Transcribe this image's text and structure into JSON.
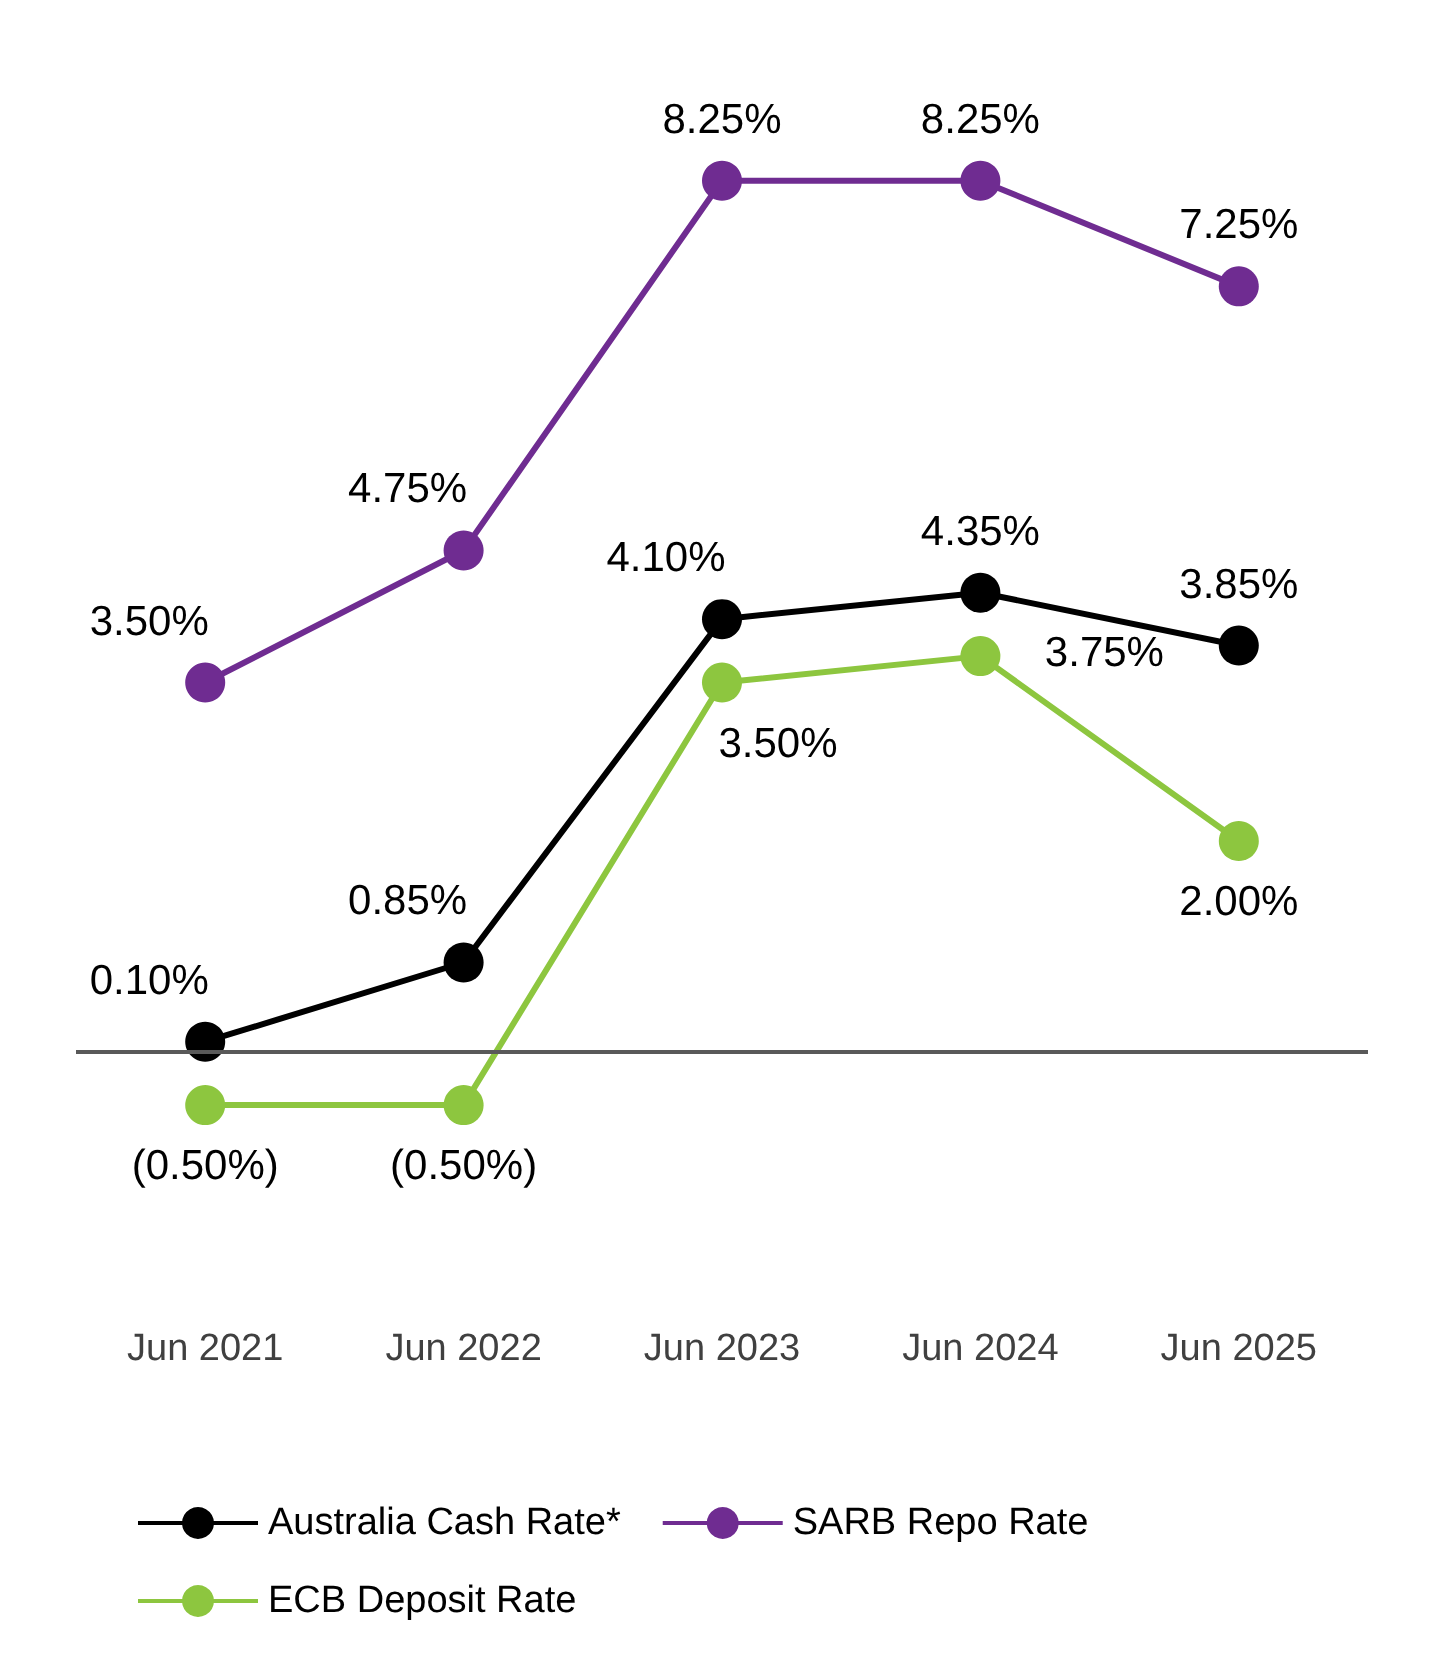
{
  "chart_data": {
    "type": "line",
    "categories": [
      "Jun 2021",
      "Jun 2022",
      "Jun 2023",
      "Jun 2024",
      "Jun 2025"
    ],
    "series": [
      {
        "name": "Australia Cash Rate*",
        "color": "#000000",
        "values": [
          0.1,
          0.85,
          4.1,
          4.35,
          3.85
        ],
        "value_labels": [
          "0.10%",
          "0.85%",
          "4.10%",
          "4.35%",
          "3.85%"
        ]
      },
      {
        "name": "SARB Repo Rate",
        "color": "#6f2c91",
        "values": [
          3.5,
          4.75,
          8.25,
          8.25,
          7.25
        ],
        "value_labels": [
          "3.50%",
          "4.75%",
          "8.25%",
          "8.25%",
          "7.25%"
        ]
      },
      {
        "name": "ECB Deposit Rate",
        "color": "#8dc63f",
        "values": [
          -0.5,
          -0.5,
          3.5,
          3.75,
          2.0
        ],
        "value_labels": [
          "(0.50%)",
          "(0.50%)",
          "3.50%",
          "3.75%",
          "2.00%"
        ]
      }
    ],
    "ref_lines": [
      {
        "axis": "y",
        "value": 0,
        "color": "#595959"
      }
    ],
    "legend": "bottom",
    "marker": "circle",
    "line_style": "solid",
    "grid": false
  }
}
